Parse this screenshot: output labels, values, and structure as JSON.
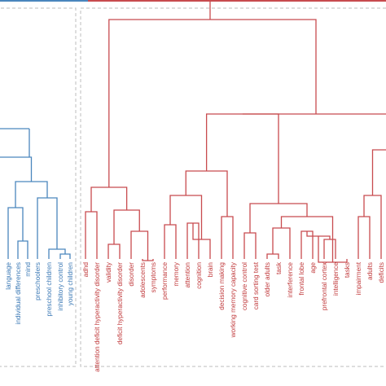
{
  "colors": {
    "red_cluster": "#c84b4f",
    "blue_cluster": "#4a86bd",
    "box_dash": "#bdbdbd"
  },
  "dendrogram": {
    "blue_leaves": [
      {
        "label": "language"
      },
      {
        "label": "individual differences"
      },
      {
        "label": "mind"
      },
      {
        "label": "preschoolers"
      },
      {
        "label": "preschool children"
      },
      {
        "label": "inhibitory control"
      },
      {
        "label": "young children"
      }
    ],
    "red_leaves": [
      {
        "label": "adhd"
      },
      {
        "label": "attention deficit hyperactivity disorder"
      },
      {
        "label": "validity"
      },
      {
        "label": "deficit hyperactivity disorder"
      },
      {
        "label": "disorder"
      },
      {
        "label": "adolescents"
      },
      {
        "label": "symptoms"
      },
      {
        "label": "performance"
      },
      {
        "label": "memory"
      },
      {
        "label": "attention"
      },
      {
        "label": "cognition"
      },
      {
        "label": "brain"
      },
      {
        "label": "decision making"
      },
      {
        "label": "working memory capacity"
      },
      {
        "label": "cognitive control"
      },
      {
        "label": "card sorting test"
      },
      {
        "label": "older adults"
      },
      {
        "label": "task"
      },
      {
        "label": "interference"
      },
      {
        "label": "frontal lobe"
      },
      {
        "label": "age"
      },
      {
        "label": "prefrontal cortex"
      },
      {
        "label": "intelligence"
      },
      {
        "label": "tasks"
      },
      {
        "label": "impairment"
      },
      {
        "label": "adults"
      },
      {
        "label": "deficits"
      }
    ]
  }
}
